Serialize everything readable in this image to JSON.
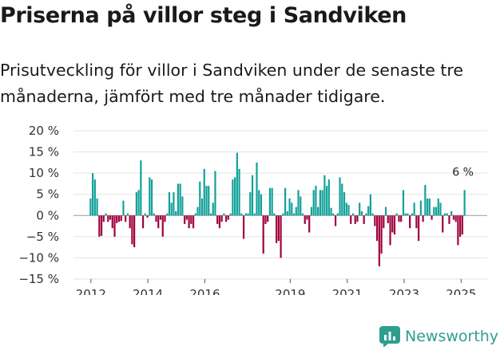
{
  "title": "Priserna på villor steg i Sandviken",
  "subtitle": "Prisutveckling för villor i Sandviken under de senaste tre månaderna, jämfört med tre månader tidigare.",
  "brand": {
    "name": "Newsworthy",
    "color": "#2f9e8f"
  },
  "chart_data": {
    "type": "bar",
    "title": "Priserna på villor steg i Sandviken",
    "xlabel": "",
    "ylabel": "",
    "ylim": [
      -15,
      20
    ],
    "yticks": [
      -15,
      -10,
      -5,
      0,
      5,
      10,
      15,
      20
    ],
    "ytick_labels": [
      "−15 %",
      "−10 %",
      "−5 %",
      "0 %",
      "5 %",
      "10 %",
      "15 %",
      "20 %"
    ],
    "xticks": [
      2012,
      2014,
      2016,
      2019,
      2021,
      2023,
      2025
    ],
    "x_start": 2011.95,
    "x_end": 2025.72,
    "grid": true,
    "colors": {
      "positive": "#12a19a",
      "negative": "#a1003c"
    },
    "annotation": {
      "text": "6 %",
      "value": 6
    },
    "values": [
      4,
      10,
      8.5,
      4,
      -5,
      -4.8,
      -1.5,
      0.5,
      -1.5,
      -1,
      -3,
      -5,
      -1.8,
      -1.5,
      -1.3,
      3.5,
      -1.5,
      0.5,
      -3,
      -6.8,
      -7.5,
      5.5,
      6,
      13,
      -3,
      0.5,
      -0.5,
      9,
      8.5,
      0.5,
      -1.5,
      -3,
      -1,
      -5,
      -1.5,
      0.5,
      5.5,
      3,
      5.5,
      1,
      7.5,
      7.5,
      4.5,
      -2,
      -1,
      -3,
      -2,
      -3,
      0.5,
      2,
      8,
      4,
      11,
      7,
      7,
      0.5,
      3,
      10.5,
      -2,
      -3,
      -1.5,
      0.5,
      -1.5,
      -1,
      0.5,
      8.5,
      9,
      14.8,
      11,
      0.5,
      -5.5,
      0.5,
      0.5,
      5.5,
      9.5,
      0.5,
      12.5,
      6,
      5,
      -9,
      -2,
      -1.5,
      6.5,
      6.5,
      0.5,
      -6.5,
      -6,
      -10,
      0.5,
      6.5,
      1,
      4,
      3,
      0.5,
      2,
      6,
      4.5,
      0.5,
      -2,
      -1,
      -4,
      2,
      6,
      7,
      2,
      6,
      6,
      9.5,
      7,
      8.5,
      1.8,
      0.5,
      -2.5,
      0.5,
      9,
      7.5,
      5.5,
      3,
      2.5,
      -2,
      0.5,
      -2,
      -1.5,
      3,
      1,
      -2,
      0.5,
      2.2,
      5,
      0.5,
      -2.5,
      -6,
      -12,
      -9,
      -3,
      2,
      -1.8,
      -7,
      -4,
      -4.5,
      0.5,
      -1.5,
      -1.5,
      6,
      0.5,
      0.5,
      -3,
      0.5,
      3,
      -3,
      -6,
      3.5,
      -1.5,
      7.2,
      4,
      4,
      -1,
      2,
      2,
      4,
      3,
      -4,
      0.5,
      0.5,
      -2,
      1,
      -1,
      -1.5,
      -7,
      -5,
      -4.5,
      6
    ]
  },
  "last_value_label": "6 %"
}
